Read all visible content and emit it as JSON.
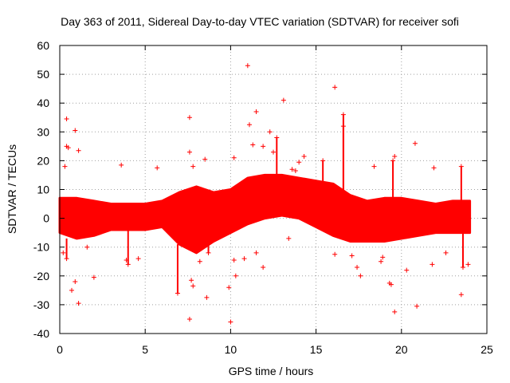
{
  "chart_data": {
    "type": "scatter",
    "title": "Day 363 of 2011, Sidereal Day-to-day VTEC variation (SDTVAR) for receiver sofi",
    "xlabel": "GPS time / hours",
    "ylabel": "SDTVAR / TECUs",
    "xlim": [
      0,
      25
    ],
    "ylim": [
      -40,
      60
    ],
    "xticks": [
      "0",
      "5",
      "10",
      "15",
      "20",
      "25"
    ],
    "yticks": [
      "60",
      "50",
      "40",
      "30",
      "20",
      "10",
      "0",
      "-10",
      "-20",
      "-30",
      "-40"
    ],
    "grid": true,
    "marker": "+",
    "color": "#ff0000",
    "band_envelope": {
      "hours": [
        0,
        1,
        2,
        3,
        4,
        5,
        6,
        7,
        8,
        9,
        10,
        11,
        12,
        13,
        14,
        15,
        16,
        17,
        18,
        19,
        20,
        21,
        22,
        23,
        24
      ],
      "upper": [
        7,
        7,
        6,
        5,
        5,
        5,
        6,
        9,
        11,
        9,
        10,
        14,
        15,
        15,
        14,
        13,
        12,
        8,
        6,
        7,
        7,
        6,
        5,
        6,
        6
      ],
      "lower": [
        -5,
        -7,
        -6,
        -4,
        -4,
        -4,
        -3,
        -9,
        -12,
        -8,
        -5,
        -2,
        0,
        1,
        0,
        -3,
        -6,
        -8,
        -8,
        -8,
        -7,
        -6,
        -5,
        -5,
        -5
      ]
    },
    "spikes": [
      {
        "x": 6.9,
        "y": -26
      },
      {
        "x": 12.7,
        "y": 28
      },
      {
        "x": 15.4,
        "y": 20
      },
      {
        "x": 16.6,
        "y": 36
      },
      {
        "x": 16.6,
        "y": 32
      },
      {
        "x": 0.4,
        "y": -14
      },
      {
        "x": 4.0,
        "y": -16
      },
      {
        "x": 8.7,
        "y": -12
      },
      {
        "x": 23.5,
        "y": 18
      },
      {
        "x": 23.6,
        "y": -17
      },
      {
        "x": 19.5,
        "y": 20
      }
    ],
    "outliers": [
      {
        "x": 11.0,
        "y": 53
      },
      {
        "x": 16.1,
        "y": 45.5
      },
      {
        "x": 13.1,
        "y": 41
      },
      {
        "x": 11.5,
        "y": 37
      },
      {
        "x": 7.6,
        "y": 35
      },
      {
        "x": 0.4,
        "y": 34.5
      },
      {
        "x": 11.1,
        "y": 32.5
      },
      {
        "x": 0.9,
        "y": 30.5
      },
      {
        "x": 12.3,
        "y": 30
      },
      {
        "x": 0.4,
        "y": 25
      },
      {
        "x": 0.5,
        "y": 24.5
      },
      {
        "x": 1.1,
        "y": 23.5
      },
      {
        "x": 7.6,
        "y": 23
      },
      {
        "x": 11.3,
        "y": 25.5
      },
      {
        "x": 11.9,
        "y": 25
      },
      {
        "x": 20.8,
        "y": 26
      },
      {
        "x": 14.0,
        "y": 19.5
      },
      {
        "x": 8.5,
        "y": 20.5
      },
      {
        "x": 3.6,
        "y": 18.5
      },
      {
        "x": 5.7,
        "y": 17.5
      },
      {
        "x": 0.3,
        "y": 18
      },
      {
        "x": 19.6,
        "y": 21.5
      },
      {
        "x": 13.6,
        "y": 17
      },
      {
        "x": 21.9,
        "y": 17.5
      },
      {
        "x": 12.5,
        "y": 23
      },
      {
        "x": 7.8,
        "y": 18
      },
      {
        "x": 18.4,
        "y": 18
      },
      {
        "x": 13.8,
        "y": 16.5
      },
      {
        "x": 10.2,
        "y": 21
      },
      {
        "x": 14.3,
        "y": 21.5
      },
      {
        "x": 10.0,
        "y": -36
      },
      {
        "x": 7.6,
        "y": -35
      },
      {
        "x": 19.6,
        "y": -32.5
      },
      {
        "x": 20.9,
        "y": -30.5
      },
      {
        "x": 1.1,
        "y": -29.5
      },
      {
        "x": 8.6,
        "y": -27.5
      },
      {
        "x": 23.5,
        "y": -26.5
      },
      {
        "x": 0.7,
        "y": -25
      },
      {
        "x": 9.9,
        "y": -24
      },
      {
        "x": 7.8,
        "y": -23.5
      },
      {
        "x": 19.3,
        "y": -22.5
      },
      {
        "x": 19.4,
        "y": -23
      },
      {
        "x": 0.9,
        "y": -22
      },
      {
        "x": 7.7,
        "y": -21.5
      },
      {
        "x": 10.3,
        "y": -20
      },
      {
        "x": 17.6,
        "y": -20
      },
      {
        "x": 2.0,
        "y": -20.5
      },
      {
        "x": 11.9,
        "y": -17
      },
      {
        "x": 3.9,
        "y": -14.5
      },
      {
        "x": 4.6,
        "y": -14
      },
      {
        "x": 8.2,
        "y": -15
      },
      {
        "x": 10.2,
        "y": -14.5
      },
      {
        "x": 17.4,
        "y": -17
      },
      {
        "x": 18.8,
        "y": -15
      },
      {
        "x": 21.8,
        "y": -16
      },
      {
        "x": 23.9,
        "y": -16
      },
      {
        "x": 16.1,
        "y": -12.5
      },
      {
        "x": 20.3,
        "y": -18
      },
      {
        "x": 22.6,
        "y": -12
      },
      {
        "x": 0.2,
        "y": -12
      },
      {
        "x": 1.6,
        "y": -10
      },
      {
        "x": 10.8,
        "y": -14
      },
      {
        "x": 17.1,
        "y": -13
      },
      {
        "x": 18.9,
        "y": -13.5
      },
      {
        "x": 11.5,
        "y": -12
      },
      {
        "x": 13.4,
        "y": -7
      }
    ]
  }
}
